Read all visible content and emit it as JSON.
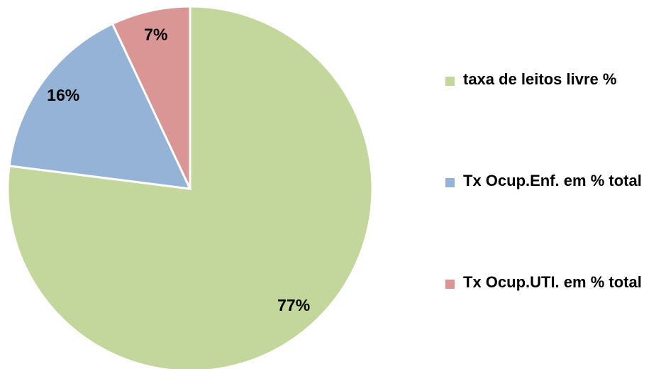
{
  "chart_data": {
    "type": "pie",
    "categories": [
      "taxa de leitos livre %",
      "Tx Ocup.Enf. em % total",
      "Tx Ocup.UTI. em % total"
    ],
    "values": [
      77,
      16,
      7
    ],
    "value_labels": [
      "77%",
      "16%",
      "7%"
    ],
    "colors": [
      "#c3d69b",
      "#95b3d7",
      "#d99694"
    ],
    "legend": "right"
  }
}
